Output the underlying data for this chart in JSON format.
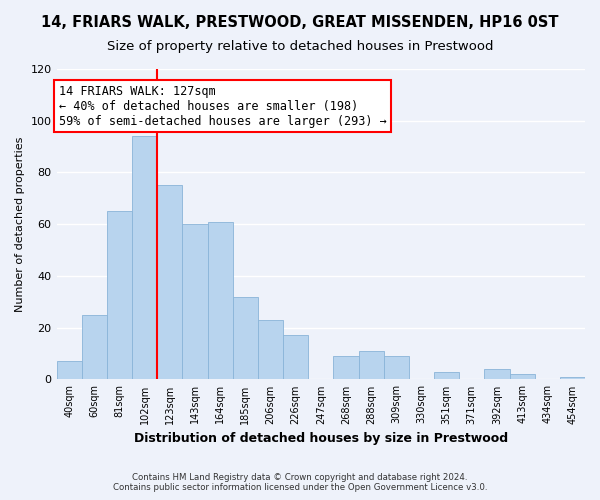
{
  "title": "14, FRIARS WALK, PRESTWOOD, GREAT MISSENDEN, HP16 0ST",
  "subtitle": "Size of property relative to detached houses in Prestwood",
  "xlabel": "Distribution of detached houses by size in Prestwood",
  "ylabel": "Number of detached properties",
  "bin_labels": [
    "40sqm",
    "60sqm",
    "81sqm",
    "102sqm",
    "123sqm",
    "143sqm",
    "164sqm",
    "185sqm",
    "206sqm",
    "226sqm",
    "247sqm",
    "268sqm",
    "288sqm",
    "309sqm",
    "330sqm",
    "351sqm",
    "371sqm",
    "392sqm",
    "413sqm",
    "434sqm",
    "454sqm"
  ],
  "bar_heights": [
    7,
    25,
    65,
    94,
    75,
    60,
    61,
    32,
    23,
    17,
    0,
    9,
    11,
    9,
    0,
    3,
    0,
    4,
    2,
    0,
    1
  ],
  "bar_color": "#b8d4ee",
  "bar_edge_color": "#8ab4d8",
  "vline_x": 4,
  "vline_color": "red",
  "annotation_title": "14 FRIARS WALK: 127sqm",
  "annotation_line1": "← 40% of detached houses are smaller (198)",
  "annotation_line2": "59% of semi-detached houses are larger (293) →",
  "annotation_box_color": "white",
  "annotation_box_edge": "red",
  "ylim": [
    0,
    120
  ],
  "yticks": [
    0,
    20,
    40,
    60,
    80,
    100,
    120
  ],
  "footer_line1": "Contains HM Land Registry data © Crown copyright and database right 2024.",
  "footer_line2": "Contains public sector information licensed under the Open Government Licence v3.0.",
  "bg_color": "#eef2fa",
  "title_fontsize": 10.5,
  "subtitle_fontsize": 9.5,
  "annotation_fontsize": 8.5
}
